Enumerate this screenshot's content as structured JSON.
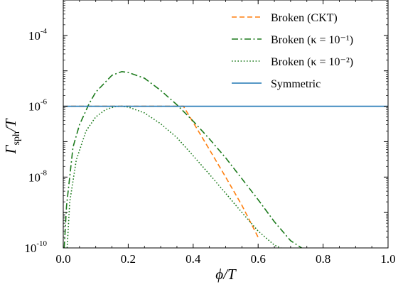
{
  "chart_data": {
    "type": "line",
    "title": "",
    "xlabel": "ϕ/T",
    "ylabel": "Γsph/T",
    "xlim": [
      0.0,
      1.0
    ],
    "ylim": [
      1e-10,
      0.001
    ],
    "yscale": "log",
    "grid": false,
    "legend_position": "top-right",
    "x_ticks": [
      {
        "value": 0.0,
        "label": "0.0"
      },
      {
        "value": 0.2,
        "label": "0.2"
      },
      {
        "value": 0.4,
        "label": "0.4"
      },
      {
        "value": 0.6,
        "label": "0.6"
      },
      {
        "value": 0.8,
        "label": "0.8"
      },
      {
        "value": 1.0,
        "label": "1.0"
      }
    ],
    "y_ticks": [
      {
        "value": 1e-10,
        "base": "10",
        "exp": "-10"
      },
      {
        "value": 1e-08,
        "base": "10",
        "exp": "-8"
      },
      {
        "value": 1e-06,
        "base": "10",
        "exp": "-6"
      },
      {
        "value": 0.0001,
        "base": "10",
        "exp": "-4"
      }
    ],
    "series": [
      {
        "name": "Broken (CKT)",
        "color": "#ff7f0e",
        "style": "dashed",
        "x": [
          0.0,
          0.1,
          0.2,
          0.3,
          0.37,
          0.4,
          0.45,
          0.5,
          0.55,
          0.6
        ],
        "y": [
          1e-06,
          1e-06,
          1e-06,
          1e-06,
          1e-06,
          3.5e-07,
          6e-08,
          1e-08,
          1.6e-09,
          2e-10
        ]
      },
      {
        "name": "Broken (κ = 10⁻¹)",
        "color": "#1b7a1b",
        "style": "dashdot",
        "x": [
          0.003,
          0.01,
          0.03,
          0.05,
          0.08,
          0.1,
          0.15,
          0.18,
          0.2,
          0.25,
          0.3,
          0.35,
          0.4,
          0.45,
          0.5,
          0.55,
          0.6,
          0.65,
          0.7,
          0.75
        ],
        "y": [
          1e-10,
          1.5e-09,
          7e-08,
          3e-07,
          1.2e-06,
          2.5e-06,
          7.5e-06,
          9.5e-06,
          9e-06,
          6.2e-06,
          2.8e-06,
          1.1e-06,
          3.8e-07,
          1.2e-07,
          3.5e-08,
          9e-09,
          2.3e-09,
          5.5e-10,
          1.6e-10,
          8e-11
        ]
      },
      {
        "name": "Broken (κ = 10⁻²)",
        "color": "#1b7a1b",
        "style": "dotted",
        "x": [
          0.012,
          0.02,
          0.04,
          0.07,
          0.1,
          0.13,
          0.16,
          0.18,
          0.2,
          0.25,
          0.3,
          0.35,
          0.4,
          0.45,
          0.5,
          0.55,
          0.6,
          0.65,
          0.67
        ],
        "y": [
          1e-10,
          2e-09,
          3e-08,
          2e-07,
          5e-07,
          8e-07,
          9.8e-07,
          1e-06,
          9.5e-07,
          6.5e-07,
          3.2e-07,
          1.3e-07,
          4e-08,
          1.2e-08,
          3.5e-09,
          1e-09,
          3e-10,
          1.2e-10,
          1e-10
        ]
      },
      {
        "name": "Symmetric",
        "color": "#1f77b4",
        "style": "solid",
        "x": [
          0.0,
          1.0
        ],
        "y": [
          1e-06,
          1e-06
        ]
      }
    ]
  }
}
